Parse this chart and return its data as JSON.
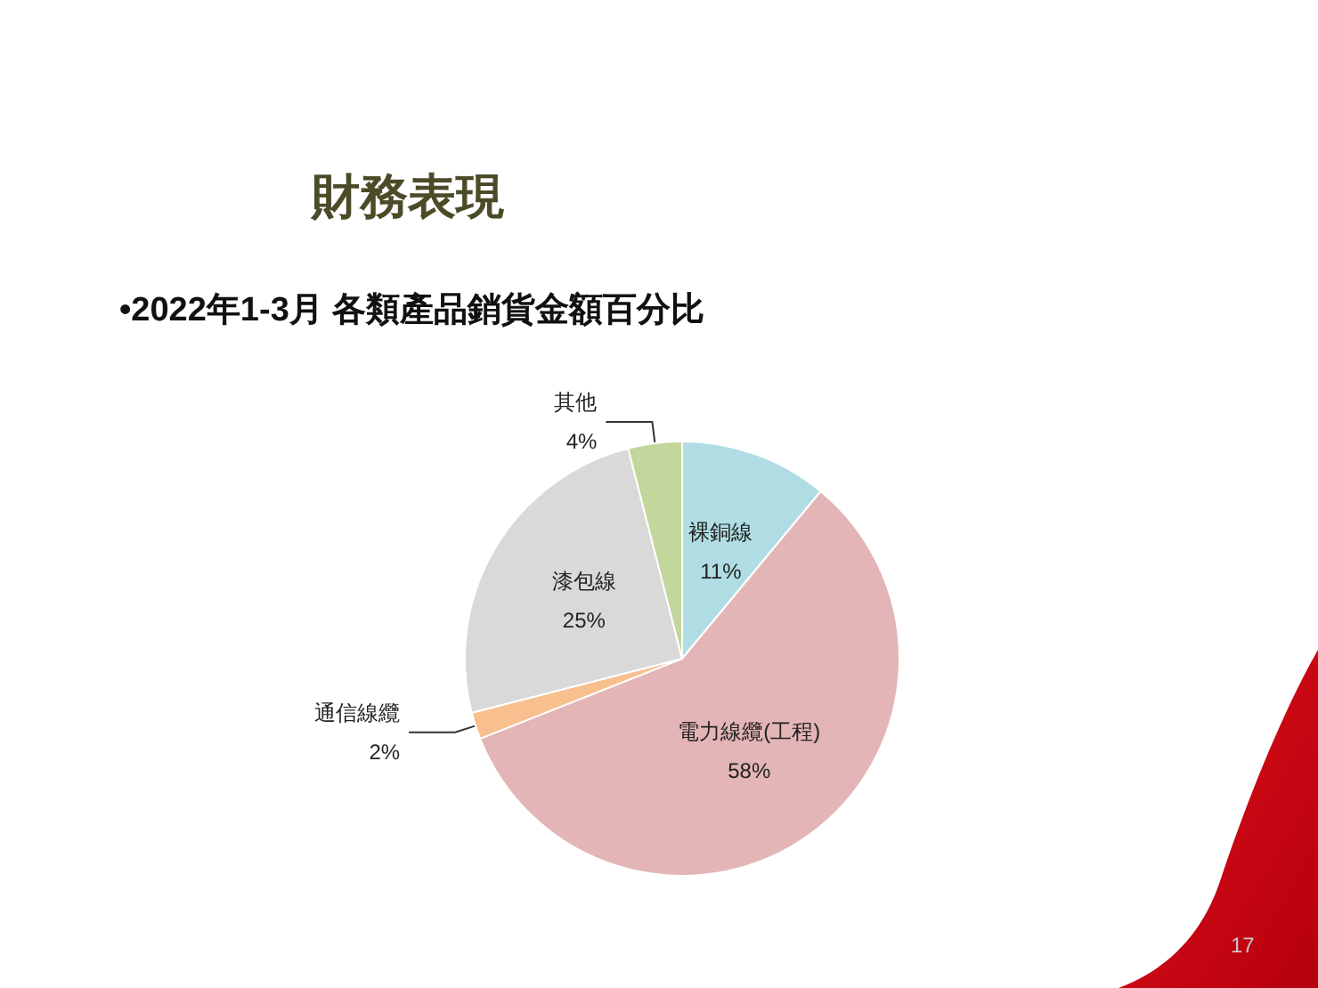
{
  "chart_data": {
    "type": "pie",
    "title": "財務表現",
    "subtitle": "•2022年1-3月 各類產品銷貨金額百分比",
    "categories": [
      "裸銅線",
      "電力線纜(工程)",
      "通信線纜",
      "漆包線",
      "其他"
    ],
    "values": [
      11,
      58,
      2,
      25,
      4
    ],
    "colors": [
      "#b0dde4",
      "#e4b5b6",
      "#f8c08f",
      "#d9d9d9",
      "#c3d69b"
    ],
    "value_labels": [
      "11%",
      "58%",
      "2%",
      "25%",
      "4%"
    ],
    "annotations": [
      "17"
    ]
  }
}
